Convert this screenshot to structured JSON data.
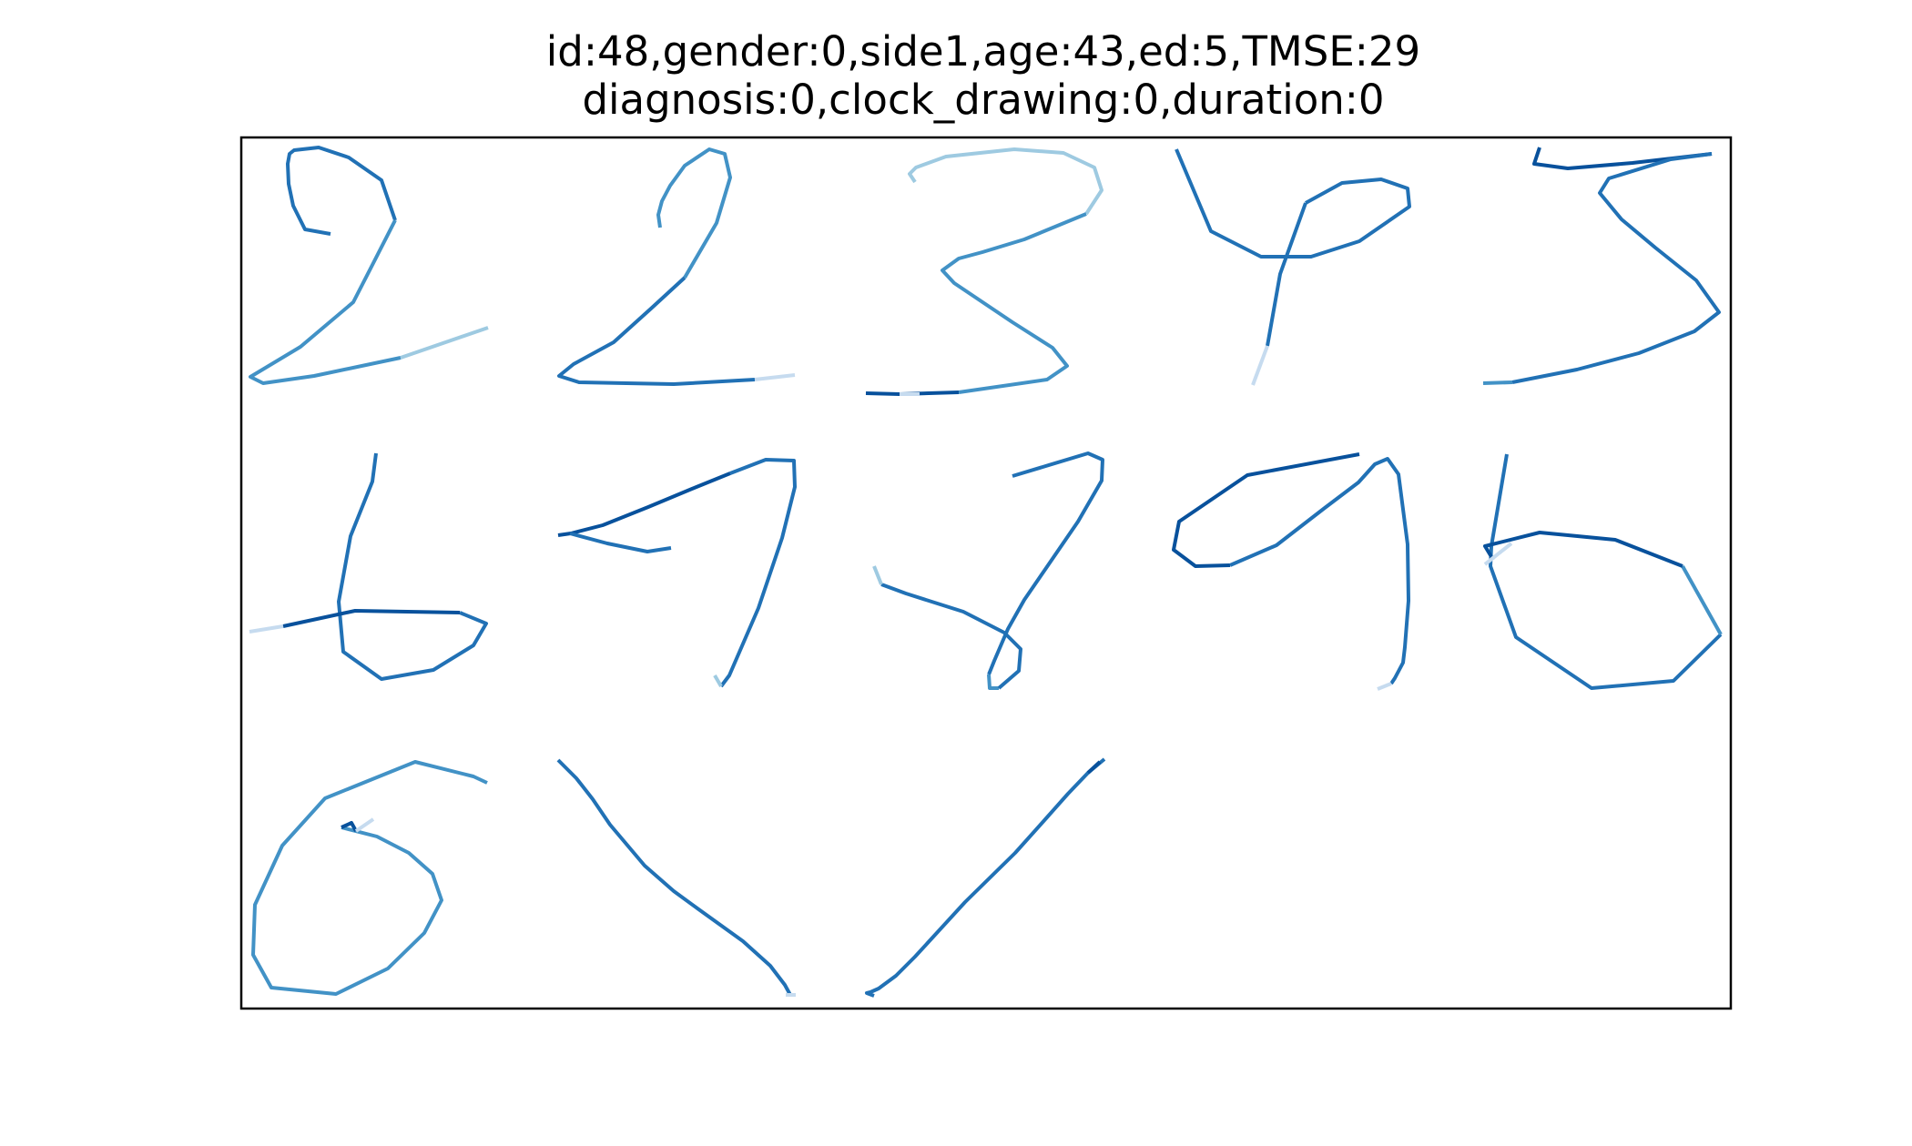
{
  "title": {
    "line1": "id:48,gender:0,side1,age:43,ed:5,TMSE:29",
    "line2": "diagnosis:0,clock_drawing:0,duration:0"
  },
  "colors": {
    "background": "#ffffff",
    "frame": "#000000",
    "stroke_palette": [
      "#c6dbef",
      "#9ecae1",
      "#6baed6",
      "#4292c6",
      "#2171b5",
      "#08519c"
    ]
  },
  "panels": {
    "rows": 3,
    "cols": 5,
    "drawn_cells": 13
  }
}
